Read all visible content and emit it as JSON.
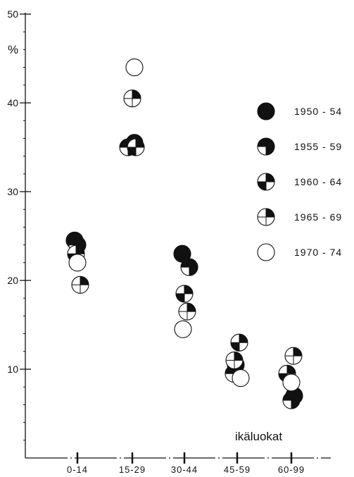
{
  "chart_data": {
    "type": "scatter",
    "title": "",
    "ylabel": "%",
    "xlabel": "ikäluokat",
    "ylim": [
      0,
      50
    ],
    "yticks": [
      10,
      20,
      30,
      40,
      50
    ],
    "categories": [
      "0-14",
      "15-29",
      "30-44",
      "45-59",
      "60-99"
    ],
    "series": [
      {
        "name": "1950 - 54",
        "fill": "full",
        "values": [
          24.5,
          35.5,
          23,
          10.5,
          7
        ]
      },
      {
        "name": "1955 - 59",
        "fill": "three-quarter",
        "values": [
          24,
          35,
          21.5,
          9.5,
          6.5
        ]
      },
      {
        "name": "1960 - 64",
        "fill": "half",
        "values": [
          23,
          35,
          18.5,
          13,
          9.5
        ]
      },
      {
        "name": "1965 - 69",
        "fill": "quarter",
        "values": [
          19.5,
          40.5,
          16.5,
          11,
          11.5
        ]
      },
      {
        "name": "1970 - 74",
        "fill": "empty",
        "values": [
          22,
          44,
          14.5,
          9,
          8.5
        ]
      }
    ],
    "legend_position": "right"
  }
}
